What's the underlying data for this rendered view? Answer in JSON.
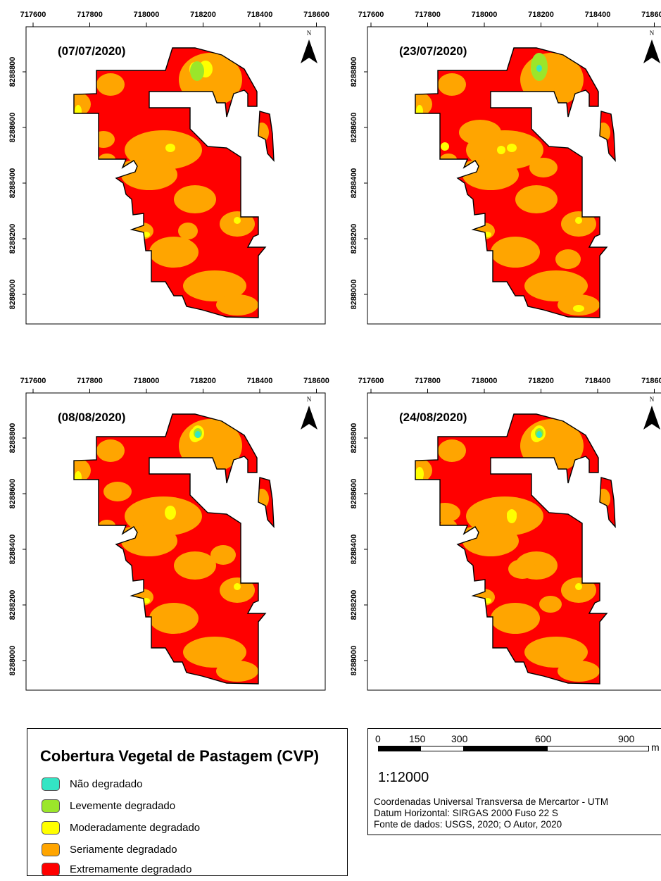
{
  "panels": [
    {
      "date": "(07/07/2020)",
      "variant": 0
    },
    {
      "date": "(23/07/2020)",
      "variant": 1
    },
    {
      "date": "(08/08/2020)",
      "variant": 2
    },
    {
      "date": "(24/08/2020)",
      "variant": 3
    }
  ],
  "x_ticks": [
    "717600",
    "717800",
    "718000",
    "718200",
    "718400",
    "718600"
  ],
  "y_ticks": [
    "8288800",
    "8288600",
    "8288400",
    "8288200",
    "8288000"
  ],
  "north_label": "N",
  "legend": {
    "title": "Cobertura Vegetal de Pastagem (CVP)",
    "items": [
      {
        "label": "Não degradado",
        "color": "#33e5c4"
      },
      {
        "label": "Levemente degradado",
        "color": "#9be62a"
      },
      {
        "label": "Moderadamente degradado",
        "color": "#ffff00"
      },
      {
        "label": "Seriamente degradado",
        "color": "#ffa500"
      },
      {
        "label": "Extremamente degradado",
        "color": "#ff0000"
      }
    ]
  },
  "scale": {
    "labels": [
      "0",
      "150",
      "300",
      "600",
      "900"
    ],
    "unit": "m",
    "ratio": "1:12000",
    "lines": [
      "Coordenadas Universal Transversa de Mercartor - UTM",
      "Datum Horizontal: SIRGAS 2000 Fuso 22 S",
      "Fonte de dados: USGS, 2020; O Autor, 2020"
    ]
  }
}
